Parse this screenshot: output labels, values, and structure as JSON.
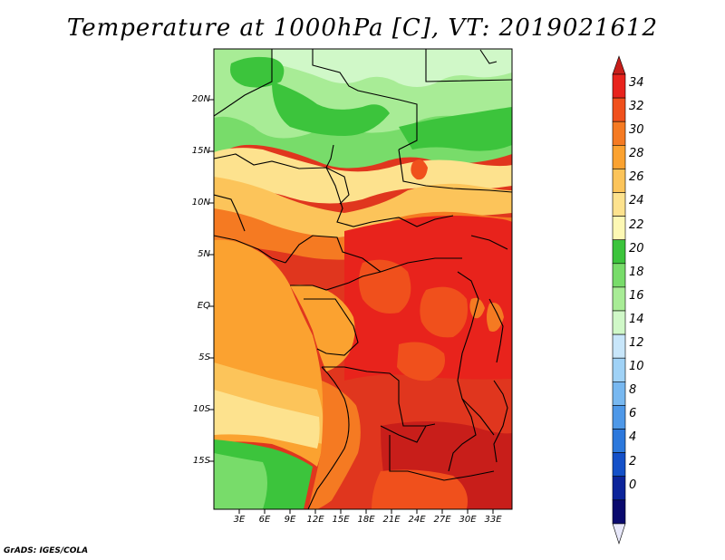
{
  "title": "Temperature at 1000hPa [C], VT: 2019021612",
  "credit": "GrADS: IGES/COLA",
  "lat_labels": [
    "20N",
    "15N",
    "10N",
    "5N",
    "EQ",
    "5S",
    "10S",
    "15S"
  ],
  "lon_labels": [
    "3E",
    "6E",
    "9E",
    "12E",
    "15E",
    "18E",
    "21E",
    "24E",
    "27E",
    "30E",
    "33E"
  ],
  "colorbar": {
    "labels": [
      "34",
      "32",
      "30",
      "28",
      "26",
      "24",
      "22",
      "20",
      "18",
      "16",
      "14",
      "12",
      "10",
      "8",
      "6",
      "4",
      "2",
      "0"
    ],
    "colors_top_to_bottom": [
      "#e8231c",
      "#f0501c",
      "#f57a22",
      "#fba230",
      "#fcc45a",
      "#fde28e",
      "#fdf8b4",
      "#3cc43c",
      "#78dc6a",
      "#a8ec96",
      "#d0f8c8",
      "#c8e6fa",
      "#a0d2f6",
      "#78b8f0",
      "#4e98e8",
      "#2c78dc",
      "#1450c8",
      "#0c249a",
      "#0a0a6e"
    ],
    "over_color": "#c81e1a",
    "under_color": "#e8e8fa"
  }
}
